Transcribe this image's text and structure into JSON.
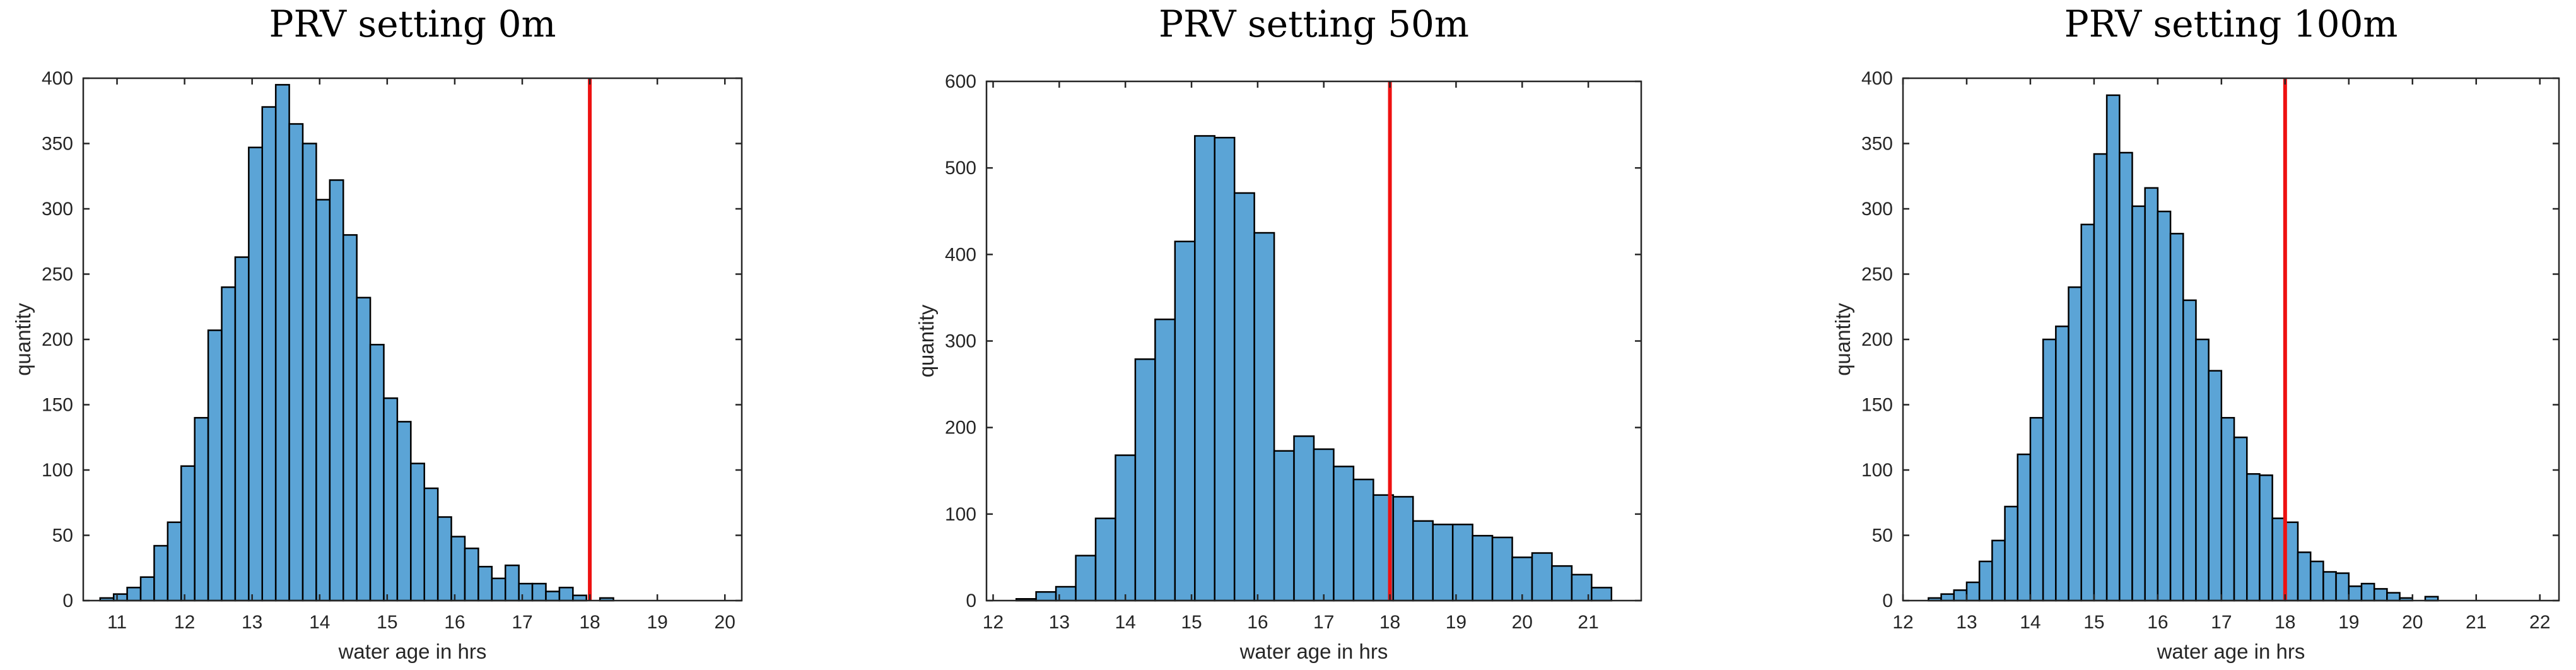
{
  "chart_data": [
    {
      "type": "bar",
      "title": "PRV setting 0m",
      "xlabel": "water age in hrs",
      "ylabel": "quantity",
      "xlim": [
        10.5,
        20.25
      ],
      "ylim": [
        0,
        400
      ],
      "xticks": [
        11,
        12,
        13,
        14,
        15,
        16,
        17,
        18,
        19,
        20
      ],
      "yticks": [
        0,
        50,
        100,
        150,
        200,
        250,
        300,
        350,
        400
      ],
      "bin_start": 10.75,
      "bin_width": 0.2,
      "values": [
        2,
        5,
        10,
        18,
        42,
        60,
        103,
        140,
        207,
        240,
        263,
        347,
        378,
        395,
        365,
        350,
        307,
        322,
        280,
        232,
        196,
        155,
        137,
        105,
        86,
        64,
        49,
        40,
        26,
        17,
        27,
        13,
        13,
        7,
        10,
        4,
        0,
        2
      ],
      "reference_line_x": 18
    },
    {
      "type": "bar",
      "title": "PRV setting 50m",
      "xlabel": "water age in hrs",
      "ylabel": "quantity",
      "xlim": [
        11.9,
        21.8
      ],
      "ylim": [
        0,
        600
      ],
      "xticks": [
        12,
        13,
        14,
        15,
        16,
        17,
        18,
        19,
        20,
        21
      ],
      "yticks": [
        0,
        100,
        200,
        300,
        400,
        500,
        600
      ],
      "bin_start": 12.35,
      "bin_width": 0.3,
      "values": [
        2,
        10,
        16,
        52,
        95,
        168,
        279,
        325,
        415,
        537,
        535,
        471,
        425,
        173,
        190,
        175,
        155,
        140,
        122,
        120,
        92,
        88,
        88,
        75,
        73,
        50,
        55,
        40,
        30,
        15
      ],
      "reference_line_x": 18
    },
    {
      "type": "bar",
      "title": "PRV setting 100m",
      "xlabel": "water age in hrs",
      "ylabel": "quantity",
      "xlim": [
        12,
        22.3
      ],
      "ylim": [
        0,
        400
      ],
      "xticks": [
        12,
        13,
        14,
        15,
        16,
        17,
        18,
        19,
        20,
        21,
        22
      ],
      "yticks": [
        0,
        50,
        100,
        150,
        200,
        250,
        300,
        350,
        400
      ],
      "bin_start": 12.4,
      "bin_width": 0.2,
      "values": [
        2,
        5,
        8,
        14,
        30,
        46,
        72,
        112,
        140,
        200,
        210,
        240,
        288,
        342,
        387,
        343,
        302,
        316,
        298,
        281,
        230,
        200,
        176,
        140,
        125,
        97,
        96,
        63,
        60,
        37,
        30,
        22,
        21,
        11,
        13,
        9,
        6,
        2,
        0,
        3
      ],
      "reference_line_x": 18
    }
  ]
}
